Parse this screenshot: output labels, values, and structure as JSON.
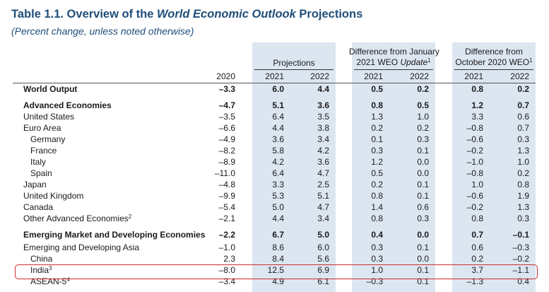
{
  "title": {
    "prefix": "Table 1.1. Overview of the ",
    "italic": "World Economic Outlook",
    "suffix": " Projections"
  },
  "subtitle": "(Percent change, unless noted otherwise)",
  "headers": {
    "projections": "Projections",
    "diff_jan_line1": "Difference from January",
    "diff_jan_line2_pre": "2021 WEO ",
    "diff_jan_line2_it": "Update",
    "diff_jan_sup": "1",
    "diff_oct_line1": "Difference from",
    "diff_oct_line2": "October 2020 WEO",
    "diff_oct_sup": "1",
    "y2020": "2020",
    "y2021a": "2021",
    "y2022a": "2022",
    "y2021b": "2021",
    "y2022b": "2022",
    "y2021c": "2021",
    "y2022c": "2022"
  },
  "rows": [
    {
      "label": "World Output",
      "sup": "",
      "bold": true,
      "indent": 0,
      "v": [
        "–3.3",
        "6.0",
        "4.4",
        "0.5",
        "0.2",
        "0.8",
        "0.2"
      ]
    },
    {
      "label": "Advanced Economies",
      "sup": "",
      "bold": true,
      "indent": 0,
      "v": [
        "–4.7",
        "5.1",
        "3.6",
        "0.8",
        "0.5",
        "1.2",
        "0.7"
      ]
    },
    {
      "label": "United States",
      "sup": "",
      "bold": false,
      "indent": 0,
      "v": [
        "–3.5",
        "6.4",
        "3.5",
        "1.3",
        "1.0",
        "3.3",
        "0.6"
      ]
    },
    {
      "label": "Euro Area",
      "sup": "",
      "bold": false,
      "indent": 0,
      "v": [
        "–6.6",
        "4.4",
        "3.8",
        "0.2",
        "0.2",
        "–0.8",
        "0.7"
      ]
    },
    {
      "label": "Germany",
      "sup": "",
      "bold": false,
      "indent": 1,
      "v": [
        "–4.9",
        "3.6",
        "3.4",
        "0.1",
        "0.3",
        "–0.6",
        "0.3"
      ]
    },
    {
      "label": "France",
      "sup": "",
      "bold": false,
      "indent": 1,
      "v": [
        "–8.2",
        "5.8",
        "4.2",
        "0.3",
        "0.1",
        "–0.2",
        "1.3"
      ]
    },
    {
      "label": "Italy",
      "sup": "",
      "bold": false,
      "indent": 1,
      "v": [
        "–8.9",
        "4.2",
        "3.6",
        "1.2",
        "0.0",
        "–1.0",
        "1.0"
      ]
    },
    {
      "label": "Spain",
      "sup": "",
      "bold": false,
      "indent": 1,
      "v": [
        "–11.0",
        "6.4",
        "4.7",
        "0.5",
        "0.0",
        "–0.8",
        "0.2"
      ]
    },
    {
      "label": "Japan",
      "sup": "",
      "bold": false,
      "indent": 0,
      "v": [
        "–4.8",
        "3.3",
        "2.5",
        "0.2",
        "0.1",
        "1.0",
        "0.8"
      ]
    },
    {
      "label": "United Kingdom",
      "sup": "",
      "bold": false,
      "indent": 0,
      "v": [
        "–9.9",
        "5.3",
        "5.1",
        "0.8",
        "0.1",
        "–0.6",
        "1.9"
      ]
    },
    {
      "label": "Canada",
      "sup": "",
      "bold": false,
      "indent": 0,
      "v": [
        "–5.4",
        "5.0",
        "4.7",
        "1.4",
        "0.6",
        "–0.2",
        "1.3"
      ]
    },
    {
      "label": "Other Advanced Economies",
      "sup": "2",
      "bold": false,
      "indent": 0,
      "v": [
        "–2.1",
        "4.4",
        "3.4",
        "0.8",
        "0.3",
        "0.8",
        "0.3"
      ]
    },
    {
      "label": "Emerging Market and Developing Economies",
      "sup": "",
      "bold": true,
      "indent": 0,
      "v": [
        "–2.2",
        "6.7",
        "5.0",
        "0.4",
        "0.0",
        "0.7",
        "–0.1"
      ]
    },
    {
      "label": "Emerging and Developing Asia",
      "sup": "",
      "bold": false,
      "indent": 0,
      "v": [
        "–1.0",
        "8.6",
        "6.0",
        "0.3",
        "0.1",
        "0.6",
        "–0.3"
      ]
    },
    {
      "label": "China",
      "sup": "",
      "bold": false,
      "indent": 1,
      "v": [
        "2.3",
        "8.4",
        "5.6",
        "0.3",
        "0.0",
        "0.2",
        "–0.2"
      ]
    },
    {
      "label": "India",
      "sup": "3",
      "bold": false,
      "indent": 1,
      "v": [
        "–8.0",
        "12.5",
        "6.9",
        "1.0",
        "0.1",
        "3.7",
        "–1.1"
      ]
    },
    {
      "label": "ASEAN-5",
      "sup": "4",
      "bold": false,
      "indent": 1,
      "v": [
        "–3.4",
        "4.9",
        "6.1",
        "–0.3",
        "0.1",
        "–1.3",
        "0.4"
      ]
    }
  ]
}
